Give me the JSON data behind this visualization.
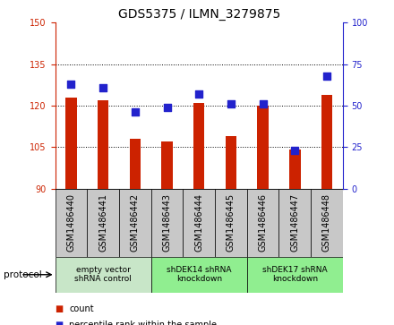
{
  "title": "GDS5375 / ILMN_3279875",
  "samples": [
    "GSM1486440",
    "GSM1486441",
    "GSM1486442",
    "GSM1486443",
    "GSM1486444",
    "GSM1486445",
    "GSM1486446",
    "GSM1486447",
    "GSM1486448"
  ],
  "counts": [
    123,
    122,
    108,
    107,
    121,
    109,
    120,
    104,
    124
  ],
  "percentiles": [
    63,
    61,
    46,
    49,
    57,
    51,
    51,
    23,
    68
  ],
  "ylim_left": [
    90,
    150
  ],
  "ylim_right": [
    0,
    100
  ],
  "yticks_left": [
    90,
    105,
    120,
    135,
    150
  ],
  "yticks_right": [
    0,
    25,
    50,
    75,
    100
  ],
  "bar_color": "#cc2200",
  "dot_color": "#2222cc",
  "background_plot": "#ffffff",
  "background_label": "#c8c8c8",
  "protocol_groups": [
    {
      "label": "empty vector\nshRNA control",
      "start": 0,
      "end": 3,
      "color": "#c8e6c8"
    },
    {
      "label": "shDEK14 shRNA\nknockdown",
      "start": 3,
      "end": 6,
      "color": "#90ee90"
    },
    {
      "label": "shDEK17 shRNA\nknockdown",
      "start": 6,
      "end": 9,
      "color": "#90ee90"
    }
  ],
  "legend_count_label": "count",
  "legend_pct_label": "percentile rank within the sample",
  "protocol_label": "protocol",
  "bar_width": 0.35,
  "dot_size": 28,
  "title_fontsize": 10,
  "tick_fontsize": 7,
  "label_fontsize": 7,
  "sample_label_fontsize": 7
}
